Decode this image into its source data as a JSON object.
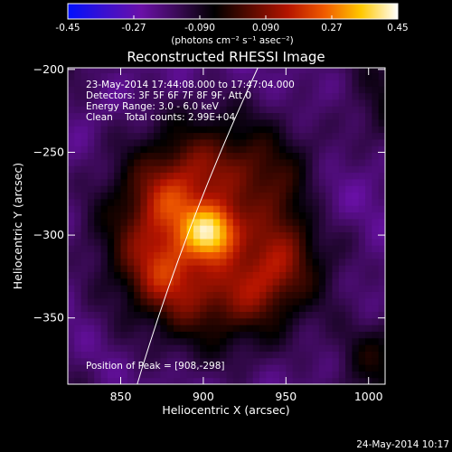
{
  "chart_data": {
    "type": "heatmap",
    "title": "Reconstructed RHESSI Image",
    "xlabel": "Heliocentric X (arcsec)",
    "ylabel": "Heliocentric Y (arcsec)",
    "xlim": [
      818,
      1010
    ],
    "ylim": [
      -390,
      -199
    ],
    "x_ticks": [
      850,
      900,
      950,
      1000
    ],
    "y_ticks": [
      -200,
      -250,
      -300,
      -350
    ],
    "colorbar": {
      "min": -0.45,
      "max": 0.45,
      "ticks": [
        "-0.45",
        "-0.27",
        "-0.090",
        "0.090",
        "0.27",
        "0.45"
      ],
      "unit_label": "(photons cm⁻² s⁻¹ asec⁻²)",
      "colors": [
        "#0010ff",
        "#3a10d0",
        "#6a10a8",
        "#3a0a55",
        "#000000",
        "#5a0a00",
        "#b41400",
        "#f05a00",
        "#ffc800",
        "#ffffff"
      ]
    },
    "info_lines": [
      "23-May-2014 17:44:08.000 to 17:47:04.000",
      "Detectors: 3F 5F 6F 7F 8F 9F, Att 0",
      "Energy Range: 3.0 - 6.0 keV",
      "Clean    Total counts: 2.99E+04"
    ],
    "peak_label": "Position of Peak = [908,-298]",
    "peak": {
      "x": 908,
      "y": -298
    },
    "limb_line": {
      "x": [
        860,
        933
      ],
      "y": [
        -390,
        -199
      ]
    },
    "sources": [
      {
        "x": 906,
        "y": -298,
        "value": 0.45
      },
      {
        "x": 887,
        "y": -282,
        "value": 0.16
      },
      {
        "x": 880,
        "y": -320,
        "value": 0.14
      },
      {
        "x": 935,
        "y": -322,
        "value": 0.1
      },
      {
        "x": 1000,
        "y": -370,
        "value": 0.12
      },
      {
        "x": 1006,
        "y": -228,
        "value": 0.08
      },
      {
        "x": 975,
        "y": -280,
        "value": -0.1
      }
    ]
  },
  "footer_date": "24-May-2014 10:17"
}
